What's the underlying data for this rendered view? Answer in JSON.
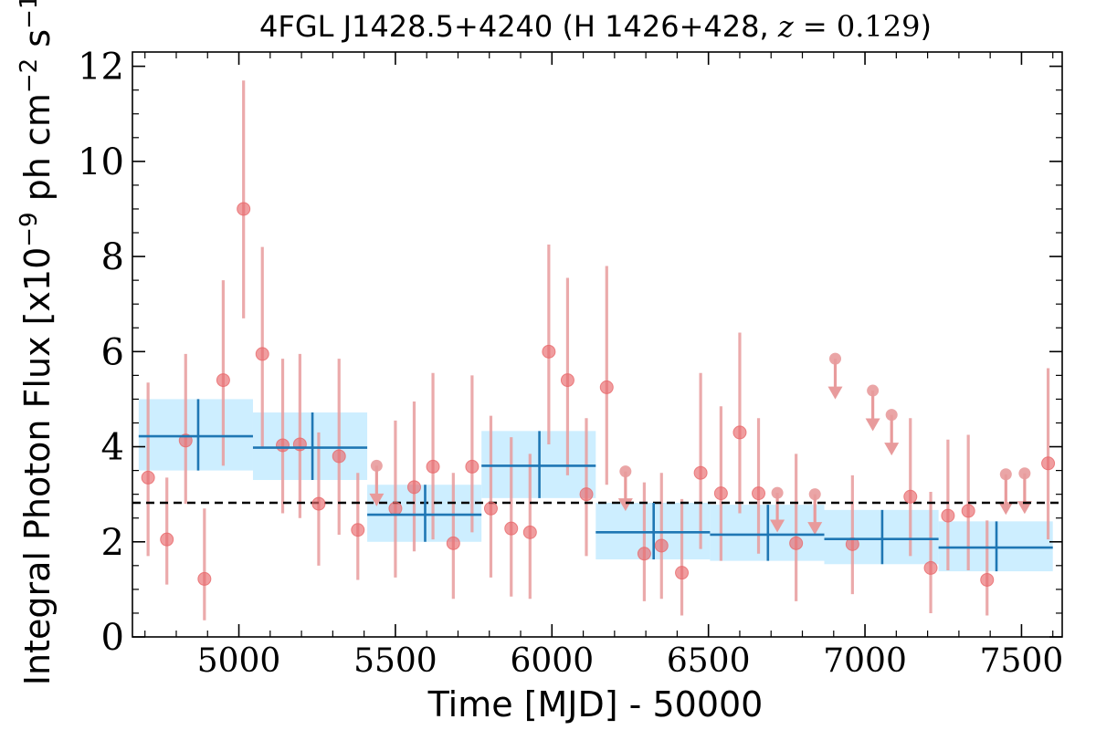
{
  "chart_data": {
    "type": "scatter",
    "title": {
      "prefix": "4FGL J1428.5+4240 (H 1426+428, ",
      "z_symbol": "z",
      "equals": " = ",
      "z_value": "0.129",
      "suffix": ")"
    },
    "xlabel": "Time [MJD] - 50000",
    "ylabel": {
      "prefix": "Integral Photon Flux [x10",
      "exp1": "−9",
      "middle": " ph cm",
      "exp2": "−2",
      "middle2": " s",
      "exp3": "−1",
      "suffix": "]"
    },
    "xlim": [
      4660,
      7630
    ],
    "ylim": [
      0,
      12.3
    ],
    "xticks": [
      5000,
      5500,
      6000,
      6500,
      7000,
      7500
    ],
    "xtick_labels": [
      "5000",
      "5500",
      "6000",
      "6500",
      "7000",
      "7500"
    ],
    "yticks": [
      0,
      2,
      4,
      6,
      8,
      10,
      12
    ],
    "ytick_labels": [
      "0",
      "2",
      "4",
      "6",
      "8",
      "10",
      "12"
    ],
    "mean_flux": 2.82,
    "colors": {
      "points": "#e8696b",
      "errorbars": "#e89b9c",
      "bins_fill": "#cdeeff",
      "bins_line": "#1f77b4",
      "mean_line": "#000000"
    },
    "series": [
      {
        "label_kind": "monthly detections",
        "points": [
          {
            "x": 4710,
            "y": 3.35,
            "lo": 1.7,
            "hi": 5.35
          },
          {
            "x": 4770,
            "y": 2.05,
            "lo": 1.1,
            "hi": 3.35
          },
          {
            "x": 4830,
            "y": 4.13,
            "lo": 2.8,
            "hi": 5.95
          },
          {
            "x": 4890,
            "y": 1.22,
            "lo": 0.35,
            "hi": 2.7
          },
          {
            "x": 4950,
            "y": 5.4,
            "lo": 3.6,
            "hi": 7.5
          },
          {
            "x": 5015,
            "y": 9.0,
            "lo": 6.7,
            "hi": 11.7
          },
          {
            "x": 5075,
            "y": 5.95,
            "lo": 4.0,
            "hi": 8.2
          },
          {
            "x": 5140,
            "y": 4.03,
            "lo": 2.6,
            "hi": 5.85
          },
          {
            "x": 5195,
            "y": 4.05,
            "lo": 2.5,
            "hi": 5.95
          },
          {
            "x": 5255,
            "y": 2.8,
            "lo": 1.5,
            "hi": 4.3
          },
          {
            "x": 5320,
            "y": 3.8,
            "lo": 2.15,
            "hi": 5.85
          },
          {
            "x": 5380,
            "y": 2.25,
            "lo": 1.2,
            "hi": 3.45
          },
          {
            "x": 5500,
            "y": 2.7,
            "lo": 1.25,
            "hi": 4.55
          },
          {
            "x": 5560,
            "y": 3.15,
            "lo": 1.8,
            "hi": 4.95
          },
          {
            "x": 5620,
            "y": 3.58,
            "lo": 2.05,
            "hi": 5.55
          },
          {
            "x": 5685,
            "y": 1.97,
            "lo": 0.8,
            "hi": 3.45
          },
          {
            "x": 5745,
            "y": 3.58,
            "lo": 2.2,
            "hi": 5.5
          },
          {
            "x": 5805,
            "y": 2.7,
            "lo": 1.25,
            "hi": 4.65
          },
          {
            "x": 5870,
            "y": 2.28,
            "lo": 0.85,
            "hi": 4.2
          },
          {
            "x": 5930,
            "y": 2.2,
            "lo": 0.8,
            "hi": 3.85
          },
          {
            "x": 5990,
            "y": 6.0,
            "lo": 4.05,
            "hi": 8.25
          },
          {
            "x": 6050,
            "y": 5.4,
            "lo": 3.4,
            "hi": 7.55
          },
          {
            "x": 6110,
            "y": 3.0,
            "lo": 1.7,
            "hi": 4.6
          },
          {
            "x": 6175,
            "y": 5.25,
            "lo": 3.2,
            "hi": 7.8
          },
          {
            "x": 6295,
            "y": 1.75,
            "lo": 0.75,
            "hi": 3.25
          },
          {
            "x": 6350,
            "y": 1.92,
            "lo": 0.8,
            "hi": 3.45
          },
          {
            "x": 6415,
            "y": 1.35,
            "lo": 0.45,
            "hi": 2.9
          },
          {
            "x": 6475,
            "y": 3.45,
            "lo": 1.85,
            "hi": 5.55
          },
          {
            "x": 6540,
            "y": 3.02,
            "lo": 1.6,
            "hi": 4.85
          },
          {
            "x": 6600,
            "y": 4.3,
            "lo": 2.6,
            "hi": 6.4
          },
          {
            "x": 6660,
            "y": 3.02,
            "lo": 1.75,
            "hi": 4.6
          },
          {
            "x": 6780,
            "y": 1.97,
            "lo": 0.75,
            "hi": 3.85
          },
          {
            "x": 6960,
            "y": 1.95,
            "lo": 0.9,
            "hi": 3.4
          },
          {
            "x": 7145,
            "y": 2.95,
            "lo": 1.7,
            "hi": 4.6
          },
          {
            "x": 7210,
            "y": 1.45,
            "lo": 0.5,
            "hi": 3.05
          },
          {
            "x": 7265,
            "y": 2.55,
            "lo": 1.4,
            "hi": 4.15
          },
          {
            "x": 7330,
            "y": 2.65,
            "lo": 1.4,
            "hi": 4.25
          },
          {
            "x": 7390,
            "y": 1.2,
            "lo": 0.45,
            "hi": 2.45
          },
          {
            "x": 7585,
            "y": 3.65,
            "lo": 2.05,
            "hi": 5.65
          }
        ]
      },
      {
        "label_kind": "monthly upper limits",
        "upper_limits": [
          {
            "x": 5440,
            "y": 3.6,
            "arrow_to": 2.9
          },
          {
            "x": 6235,
            "y": 3.48,
            "arrow_to": 2.8
          },
          {
            "x": 6720,
            "y": 3.03,
            "arrow_to": 2.35
          },
          {
            "x": 6840,
            "y": 3.0,
            "arrow_to": 2.3
          },
          {
            "x": 6905,
            "y": 5.85,
            "arrow_to": 5.15
          },
          {
            "x": 7025,
            "y": 5.18,
            "arrow_to": 4.48
          },
          {
            "x": 7085,
            "y": 4.67,
            "arrow_to": 3.97
          },
          {
            "x": 7450,
            "y": 3.42,
            "arrow_to": 2.72
          },
          {
            "x": 7510,
            "y": 3.44,
            "arrow_to": 2.74
          }
        ]
      },
      {
        "label_kind": "yearly bins",
        "bins": [
          {
            "x0": 4680,
            "x1": 5045,
            "xc": 4870,
            "y": 4.22,
            "lo": 3.5,
            "hi": 5.0
          },
          {
            "x0": 5045,
            "x1": 5410,
            "xc": 5235,
            "y": 3.98,
            "lo": 3.3,
            "hi": 4.72
          },
          {
            "x0": 5410,
            "x1": 5775,
            "xc": 5595,
            "y": 2.57,
            "lo": 2.0,
            "hi": 3.2
          },
          {
            "x0": 5775,
            "x1": 6140,
            "xc": 5960,
            "y": 3.6,
            "lo": 2.92,
            "hi": 4.33
          },
          {
            "x0": 6140,
            "x1": 6505,
            "xc": 6325,
            "y": 2.2,
            "lo": 1.63,
            "hi": 2.82
          },
          {
            "x0": 6505,
            "x1": 6870,
            "xc": 6690,
            "y": 2.15,
            "lo": 1.6,
            "hi": 2.78
          },
          {
            "x0": 6870,
            "x1": 7235,
            "xc": 7055,
            "y": 2.06,
            "lo": 1.53,
            "hi": 2.67
          },
          {
            "x0": 7235,
            "x1": 7600,
            "xc": 7420,
            "y": 1.88,
            "lo": 1.38,
            "hi": 2.43
          }
        ]
      }
    ]
  }
}
